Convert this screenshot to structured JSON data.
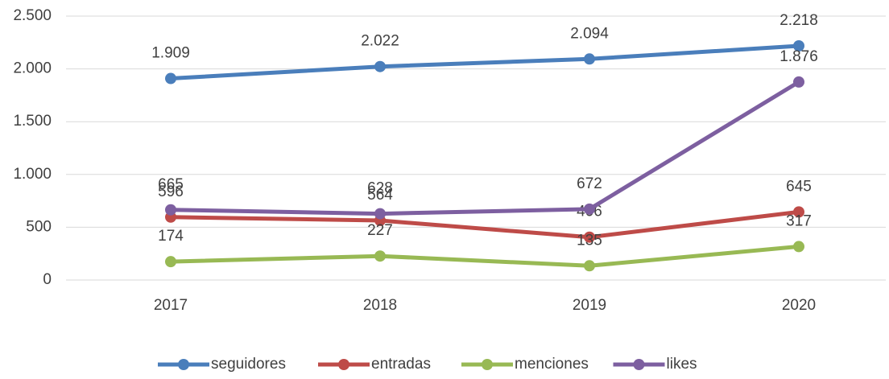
{
  "chart_data": {
    "type": "line",
    "categories": [
      "2017",
      "2018",
      "2019",
      "2020"
    ],
    "series": [
      {
        "name": "seguidores",
        "color": "#4a7ebb",
        "values": [
          1909,
          2022,
          2094,
          2218
        ],
        "value_labels": [
          "1.909",
          "2.022",
          "2.094",
          "2.218"
        ]
      },
      {
        "name": "entradas",
        "color": "#be4b48",
        "values": [
          596,
          564,
          406,
          645
        ]
      },
      {
        "name": "menciones",
        "color": "#98b954",
        "values": [
          174,
          227,
          135,
          317
        ]
      },
      {
        "name": "likes",
        "color": "#7d5fa0",
        "values": [
          665,
          628,
          672,
          1876
        ],
        "value_labels": [
          "665",
          "628",
          "672",
          "1.876"
        ]
      }
    ],
    "ylim": [
      0,
      2500
    ],
    "yticks": [
      0,
      {
        "value": 500,
        "label": "500"
      },
      {
        "value": 1000,
        "label": "1.000"
      },
      {
        "value": 1500,
        "label": "1.500"
      },
      {
        "value": 2000,
        "label": "2.000"
      },
      {
        "value": 2500,
        "label": "2.500"
      }
    ],
    "grid": true,
    "legend": "bottom"
  }
}
